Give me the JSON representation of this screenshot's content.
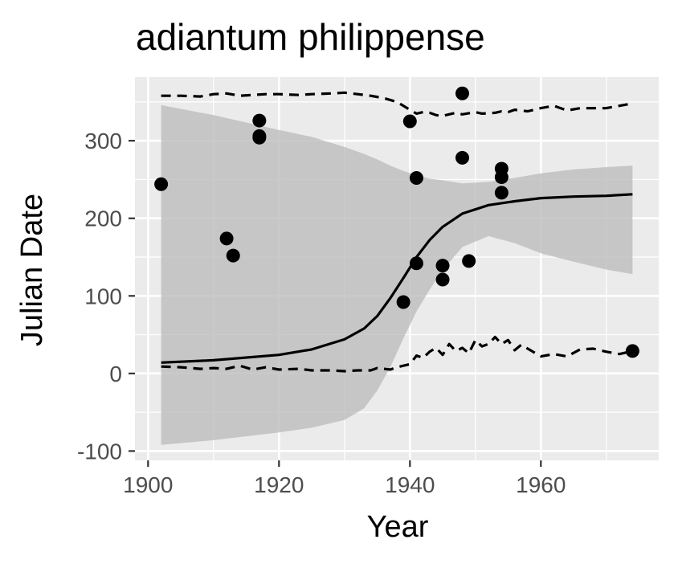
{
  "chart_data": {
    "type": "scatter",
    "title": "adiantum philippense",
    "xlabel": "Year",
    "ylabel": "Julian Date",
    "xlim": [
      1898,
      1978
    ],
    "ylim": [
      -112,
      382
    ],
    "x_ticks": [
      1900,
      1920,
      1940,
      1960
    ],
    "y_ticks": [
      -100,
      0,
      100,
      200,
      300
    ],
    "grid": true,
    "legend": "none",
    "colors": {
      "panel": "#ebebeb",
      "grid": "#ffffff",
      "points": "#000000",
      "ribbon": "#bdbdbd",
      "axis_text": "#4d4d4d"
    },
    "points": [
      {
        "x": 1902,
        "y": 244
      },
      {
        "x": 1912,
        "y": 174
      },
      {
        "x": 1913,
        "y": 152
      },
      {
        "x": 1917,
        "y": 326
      },
      {
        "x": 1917,
        "y": 306
      },
      {
        "x": 1917,
        "y": 304
      },
      {
        "x": 1939,
        "y": 92
      },
      {
        "x": 1940,
        "y": 325
      },
      {
        "x": 1941,
        "y": 252
      },
      {
        "x": 1941,
        "y": 142
      },
      {
        "x": 1945,
        "y": 139
      },
      {
        "x": 1945,
        "y": 121
      },
      {
        "x": 1948,
        "y": 361
      },
      {
        "x": 1948,
        "y": 278
      },
      {
        "x": 1949,
        "y": 145
      },
      {
        "x": 1954,
        "y": 264
      },
      {
        "x": 1954,
        "y": 253
      },
      {
        "x": 1954,
        "y": 233
      },
      {
        "x": 1974,
        "y": 29
      }
    ],
    "series": [
      {
        "style": "solid",
        "x": [
          1902,
          1910,
          1920,
          1925,
          1930,
          1933,
          1935,
          1937,
          1939,
          1941,
          1943,
          1945,
          1948,
          1952,
          1956,
          1960,
          1965,
          1970,
          1974
        ],
        "y": [
          14,
          17,
          24,
          31,
          44,
          58,
          74,
          97,
          123,
          150,
          172,
          189,
          206,
          217,
          222,
          226,
          228,
          229,
          231
        ]
      },
      {
        "style": "dashed",
        "x": [
          1902,
          1905,
          1908,
          1910,
          1912,
          1914,
          1916,
          1918,
          1920,
          1923,
          1925,
          1928,
          1930,
          1932,
          1934,
          1936,
          1938,
          1940,
          1941,
          1942,
          1943,
          1944,
          1945,
          1946,
          1947,
          1948,
          1950,
          1951,
          1953,
          1954,
          1955,
          1956,
          1958,
          1960,
          1962,
          1964,
          1966,
          1968,
          1970,
          1972,
          1974
        ],
        "y": [
          358,
          358,
          357,
          360,
          361,
          358,
          359,
          360,
          360,
          359,
          360,
          361,
          362,
          360,
          358,
          355,
          350,
          340,
          335,
          337,
          336,
          333,
          332,
          334,
          336,
          334,
          337,
          335,
          336,
          338,
          337,
          340,
          338,
          342,
          345,
          339,
          342,
          342,
          342,
          345,
          348
        ]
      },
      {
        "style": "dashed",
        "x": [
          1902,
          1905,
          1908,
          1910,
          1912,
          1914,
          1916,
          1918,
          1920,
          1923,
          1925,
          1928,
          1930,
          1932,
          1934,
          1935,
          1937,
          1938,
          1939,
          1940,
          1941,
          1942,
          1943,
          1944,
          1945,
          1946,
          1947,
          1948,
          1949,
          1950,
          1951,
          1952,
          1953,
          1954,
          1955,
          1956,
          1957,
          1958,
          1960,
          1962,
          1964,
          1966,
          1968,
          1970,
          1972,
          1974
        ],
        "y": [
          9,
          8,
          6,
          7,
          6,
          10,
          5,
          8,
          5,
          6,
          4,
          4,
          3,
          4,
          4,
          7,
          5,
          8,
          10,
          12,
          23,
          20,
          28,
          33,
          24,
          38,
          29,
          33,
          26,
          43,
          35,
          38,
          47,
          38,
          43,
          30,
          37,
          32,
          22,
          25,
          22,
          31,
          32,
          28,
          25,
          29
        ]
      }
    ],
    "ribbon": {
      "x": [
        1902,
        1910,
        1920,
        1925,
        1930,
        1933,
        1935,
        1937,
        1939,
        1941,
        1943,
        1945,
        1948,
        1952,
        1956,
        1960,
        1965,
        1970,
        1974
      ],
      "ymin": [
        -92,
        -86,
        -76,
        -70,
        -60,
        -45,
        -22,
        8,
        45,
        80,
        108,
        133,
        163,
        177,
        168,
        155,
        144,
        134,
        128
      ],
      "ymax": [
        346,
        333,
        314,
        305,
        292,
        283,
        276,
        268,
        261,
        256,
        251,
        249,
        245,
        247,
        252,
        258,
        263,
        266,
        268
      ]
    }
  }
}
